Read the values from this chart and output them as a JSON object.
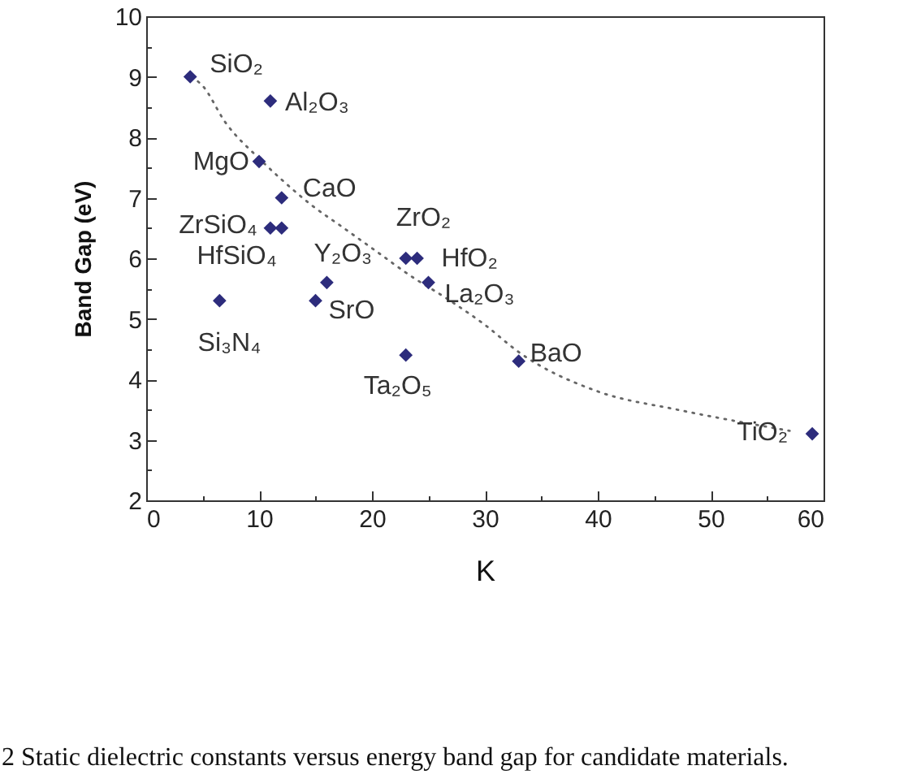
{
  "chart_data": {
    "type": "scatter",
    "xlabel": "K",
    "ylabel": "Band Gap (eV)",
    "xlim": [
      0,
      60
    ],
    "ylim": [
      2,
      10
    ],
    "xticks": [
      0,
      {
        "value": 5,
        "label": null
      },
      10,
      {
        "value": 15,
        "label": null
      },
      20,
      {
        "value": 25,
        "label": null
      },
      30,
      {
        "value": 35,
        "label": null
      },
      40,
      {
        "value": 45,
        "label": null
      },
      50,
      {
        "value": 55,
        "label": null
      },
      60
    ],
    "yticks": [
      2,
      {
        "value": 2.5,
        "label": null
      },
      3,
      {
        "value": 3.5,
        "label": null
      },
      4,
      {
        "value": 4.5,
        "label": null
      },
      5,
      {
        "value": 5.5,
        "label": null
      },
      6,
      {
        "value": 6.5,
        "label": null
      },
      7,
      {
        "value": 7.5,
        "label": null
      },
      8,
      {
        "value": 8.5,
        "label": null
      },
      9,
      {
        "value": 9.5,
        "label": null
      },
      10
    ],
    "marker": "diamond",
    "series": [
      {
        "color": "#2d2c7c",
        "x": [
          3.9,
          11,
          10,
          12,
          11,
          12,
          6.5,
          16,
          15,
          23,
          24,
          25,
          23,
          33,
          59
        ],
        "values": [
          9.0,
          8.6,
          7.6,
          7.0,
          6.5,
          6.5,
          5.3,
          5.6,
          5.3,
          6.0,
          6.0,
          5.6,
          4.4,
          4.3,
          3.1
        ]
      },
      {
        "type": "line",
        "color": "#666666",
        "line_style": "dotted",
        "marker": "none",
        "x": [
          4,
          5,
          7,
          10,
          12,
          14.5,
          17.5,
          20.5,
          23.5,
          26.5,
          30,
          33,
          40,
          47,
          52.5,
          57
        ],
        "values": [
          9.0,
          8.85,
          8.25,
          7.65,
          7.3,
          6.9,
          6.5,
          6.1,
          5.7,
          5.35,
          4.9,
          4.45,
          3.8,
          3.5,
          3.3,
          3.15
        ]
      }
    ],
    "annotations": [
      {
        "text": "SiO₂",
        "x": 3.9,
        "y": 9.0
      },
      {
        "text": "Al₂O₃",
        "x": 11,
        "y": 8.6
      },
      {
        "text": "MgO",
        "x": 10,
        "y": 7.6
      },
      {
        "text": "CaO",
        "x": 12,
        "y": 7.0
      },
      {
        "text": "ZrSiO₄",
        "x": 11,
        "y": 6.5
      },
      {
        "text": "HfSiO₄",
        "x": 12,
        "y": 6.5
      },
      {
        "text": "Si₃N₄",
        "x": 6.5,
        "y": 5.3
      },
      {
        "text": "Y₂O₃",
        "x": 16,
        "y": 5.6
      },
      {
        "text": "SrO",
        "x": 15,
        "y": 5.3
      },
      {
        "text": "ZrO₂",
        "x": 23,
        "y": 6.0
      },
      {
        "text": "HfO₂",
        "x": 24,
        "y": 6.0
      },
      {
        "text": "La₂O₃",
        "x": 25,
        "y": 5.6
      },
      {
        "text": "Ta₂O₅",
        "x": 23,
        "y": 4.4
      },
      {
        "text": "BaO",
        "x": 33,
        "y": 4.3
      },
      {
        "text": "TiO₂",
        "x": 59,
        "y": 3.1
      },
      "2 Static dielectric constants versus energy band gap for candidate materials."
    ]
  }
}
